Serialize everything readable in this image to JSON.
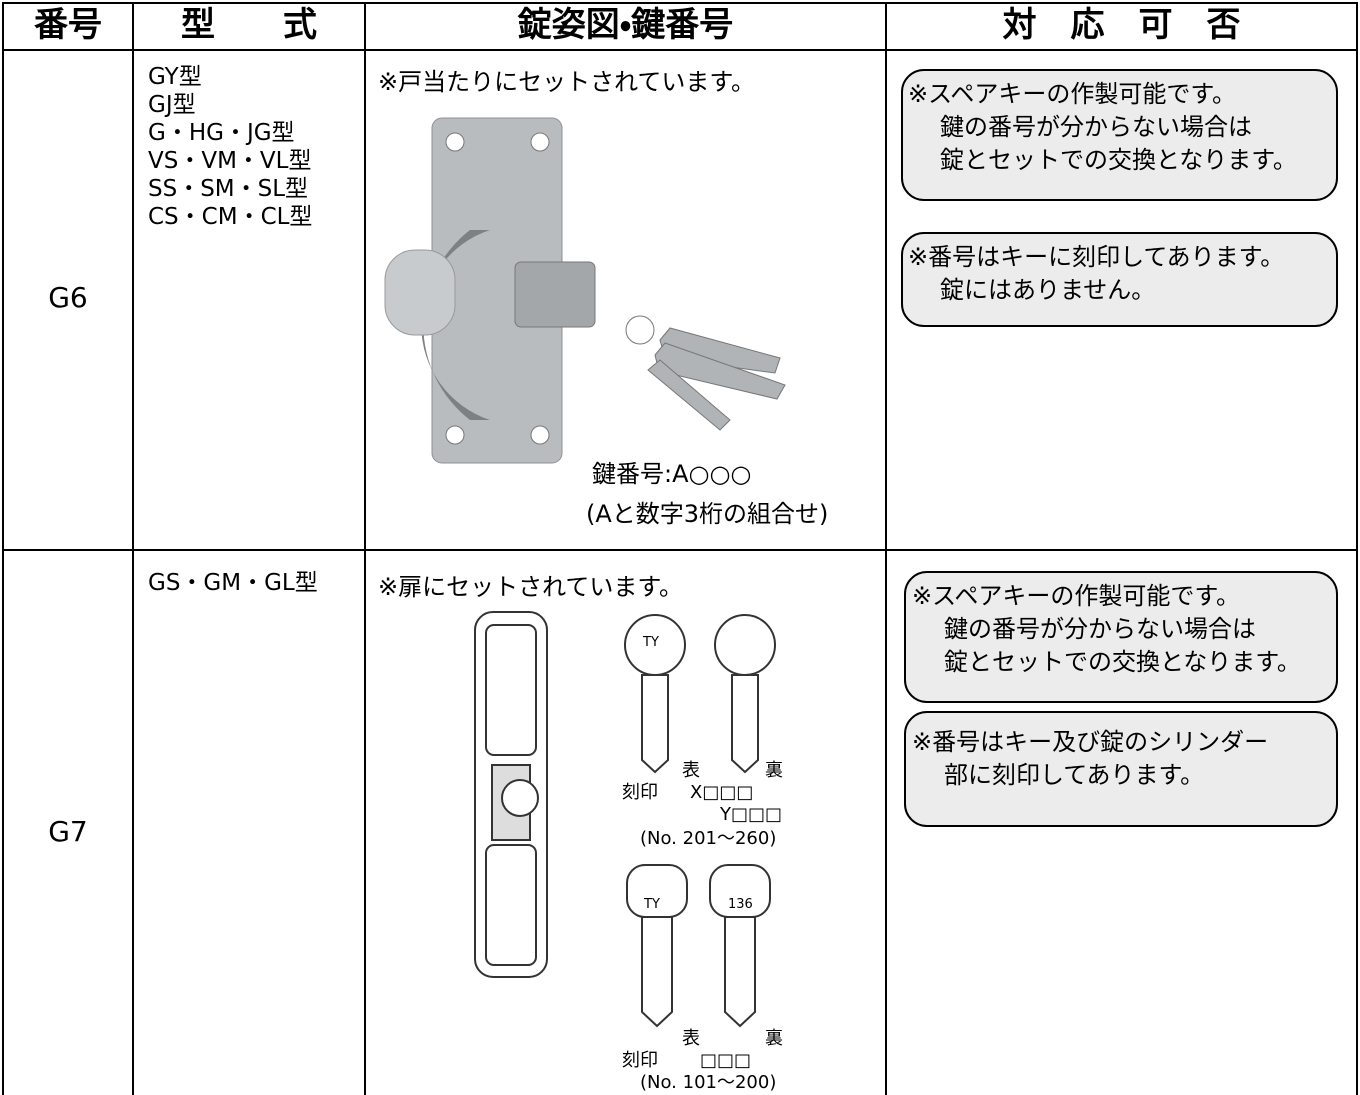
{
  "header": {
    "cells": [
      "番号",
      "型　　式",
      "錠姿図・鍵番号",
      "対　応　可　否"
    ]
  },
  "rows": [
    {
      "id": "G6",
      "models": [
        "GY型",
        "GJ型",
        "G・HG・JG型",
        "VS・VM・VL型",
        "SS・SM・SL型",
        "CS・CM・CL型"
      ],
      "figure": {
        "note": "※戸当たりにセットされています。",
        "key_number": "鍵番号:A○○○",
        "key_note": "(Aと数字3桁の組合せ)"
      },
      "notes": [
        [
          "※スペアキーの作製可能です。",
          "鍵の番号が分からない場合は",
          "錠とセットでの交換となります。"
        ],
        [
          "※番号はキーに刻印してあります。",
          "錠にはありません。"
        ]
      ]
    },
    {
      "id": "G7",
      "models": [
        "GS・GM・GL型"
      ],
      "figure": {
        "note": "※扉にセットされています。",
        "keys_a": {
          "front": "表",
          "back": "裏",
          "stamp": "刻印",
          "codes": [
            "X□□□",
            "Y□□□"
          ],
          "range": "(No. 201～260)",
          "front_mark": "TY"
        },
        "keys_b": {
          "front": "表",
          "back": "裏",
          "stamp": "刻印",
          "codes": [
            "□□□"
          ],
          "range": "(No. 101～200)",
          "front_mark": "TY",
          "back_mark": "136"
        }
      },
      "notes": [
        [
          "※スペアキーの作製可能です。",
          "鍵の番号が分からない場合は",
          "錠とセットでの交換となります。"
        ],
        [
          "※番号はキー及び錠のシリンダー",
          "部に刻印してあります。"
        ]
      ]
    }
  ]
}
